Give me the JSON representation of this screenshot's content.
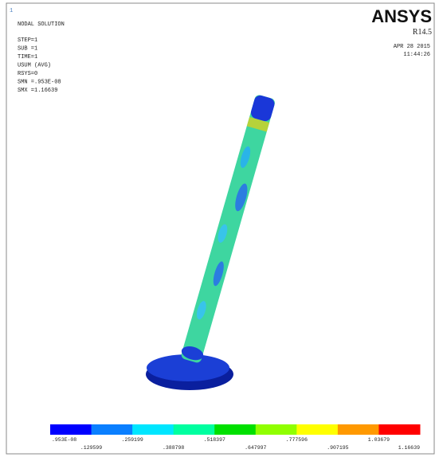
{
  "header": {
    "window_number": "1",
    "title": "NODAL SOLUTION",
    "lines": [
      "STEP=1",
      "SUB =1",
      "TIME=1",
      "USUM     (AVG)",
      "RSYS=0",
      "SMN =.953E-08",
      "SMX =1.16639"
    ]
  },
  "brand": {
    "name": "ANSYS",
    "release": "R14.5",
    "date": "APR 28 2015",
    "time": "11:44:26"
  },
  "legend": {
    "labels": [
      ".953E-08",
      ".129599",
      ".259199",
      ".388798",
      ".518397",
      ".647997",
      ".777596",
      ".907195",
      "1.03679",
      "1.16639"
    ]
  }
}
